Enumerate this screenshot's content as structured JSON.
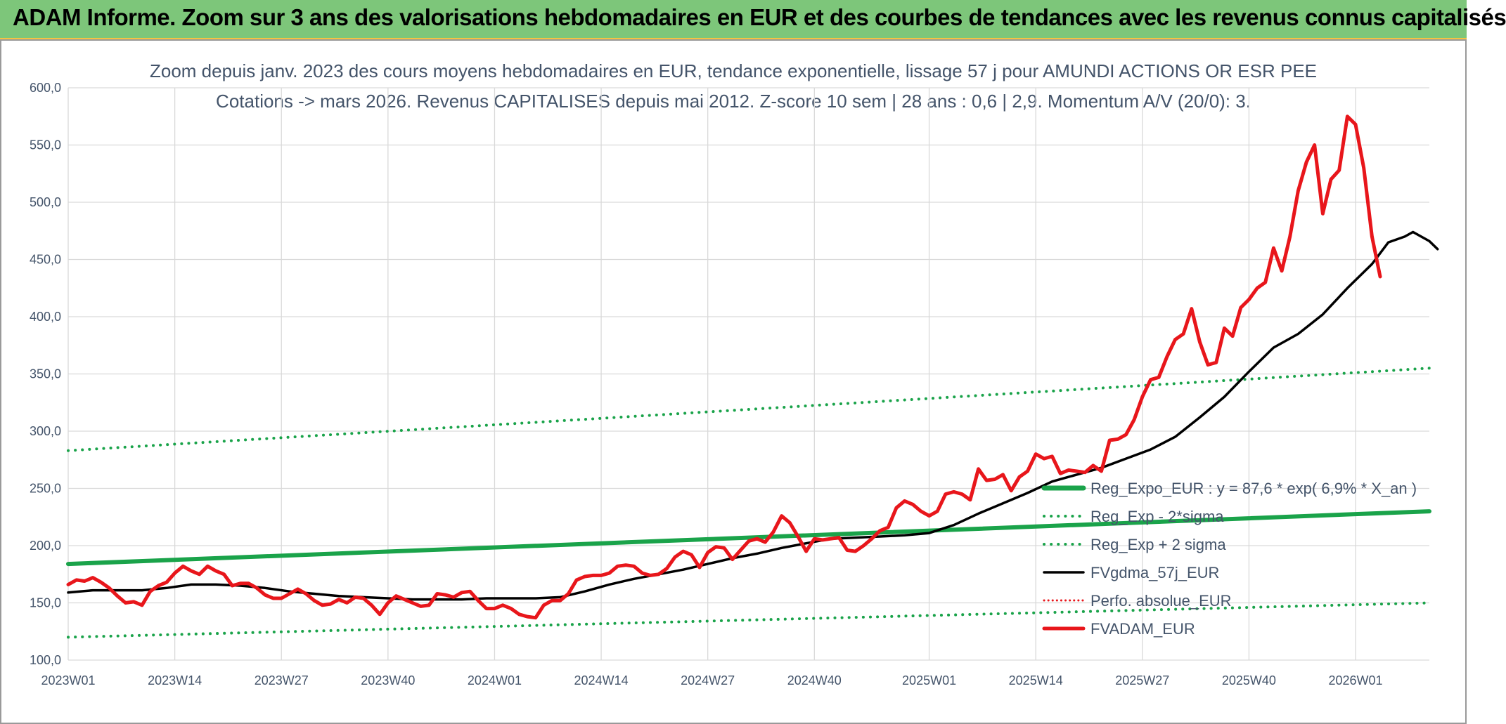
{
  "banner": {
    "title": "ADAM Informe. Zoom sur 3 ans des valorisations hebdomadaires en EUR et des courbes de tendances avec les revenus connus capitalisés"
  },
  "colors": {
    "banner_bg": "#7dc67a",
    "banner_accent": "#f5c242",
    "fvadam": "#e8161b",
    "fvgdma": "#000000",
    "reg_expo": "#1aa34a",
    "perfo": "#e8161b",
    "grid": "#d9d9d9",
    "text": "#44546a"
  },
  "chart_data": {
    "type": "line",
    "title": "Zoom depuis janv. 2023 des cours moyens hebdomadaires en EUR, tendance exponentielle, lissage 57 j pour AMUNDI ACTIONS OR ESR PEE",
    "subtitle": "Cotations -> mars 2026. Revenus CAPITALISES depuis mai 2012. Z-score 10 sem | 28 ans : 0,6 | 2,9. Momentum A/V (20/0): 3.",
    "xlabel": "",
    "ylabel": "",
    "ylim": [
      100,
      600
    ],
    "yticks": [
      "100,0",
      "150,0",
      "200,0",
      "250,0",
      "300,0",
      "350,0",
      "400,0",
      "450,0",
      "500,0",
      "550,0",
      "600,0"
    ],
    "xlim": [
      0,
      166
    ],
    "xticks": [
      {
        "x": 0,
        "label": "2023W01"
      },
      {
        "x": 13,
        "label": "2023W14"
      },
      {
        "x": 26,
        "label": "2023W27"
      },
      {
        "x": 39,
        "label": "2023W40"
      },
      {
        "x": 52,
        "label": "2024W01"
      },
      {
        "x": 65,
        "label": "2024W14"
      },
      {
        "x": 78,
        "label": "2024W27"
      },
      {
        "x": 91,
        "label": "2024W40"
      },
      {
        "x": 105,
        "label": "2025W01"
      },
      {
        "x": 118,
        "label": "2025W14"
      },
      {
        "x": 131,
        "label": "2025W27"
      },
      {
        "x": 144,
        "label": "2025W40"
      },
      {
        "x": 157,
        "label": "2026W01"
      }
    ],
    "grid": true,
    "legend_position": "bottom-right",
    "series": [
      {
        "name": "Reg_Expo_EUR : y = 87,6 * exp( 6,9% *  X_an )",
        "style": "thick",
        "color": "#1aa34a",
        "points": [
          [
            0,
            184
          ],
          [
            166,
            230
          ]
        ]
      },
      {
        "name": "Reg_Exp - 2*sigma",
        "style": "dotted",
        "color": "#1aa34a",
        "points": [
          [
            0,
            120
          ],
          [
            166,
            150
          ]
        ]
      },
      {
        "name": "Reg_Exp + 2 sigma",
        "style": "dotted",
        "color": "#1aa34a",
        "points": [
          [
            0,
            283
          ],
          [
            166,
            355
          ]
        ]
      },
      {
        "name": "FVgdma_57j_EUR",
        "style": "solid",
        "color": "#000000",
        "points": [
          [
            0,
            159
          ],
          [
            3,
            161
          ],
          [
            6,
            161
          ],
          [
            9,
            161
          ],
          [
            12,
            163
          ],
          [
            15,
            166
          ],
          [
            18,
            166
          ],
          [
            21,
            165
          ],
          [
            24,
            163
          ],
          [
            27,
            160
          ],
          [
            30,
            158
          ],
          [
            33,
            156
          ],
          [
            36,
            155
          ],
          [
            39,
            154
          ],
          [
            42,
            153
          ],
          [
            45,
            153
          ],
          [
            48,
            153
          ],
          [
            51,
            154
          ],
          [
            54,
            154
          ],
          [
            57,
            154
          ],
          [
            60,
            155
          ],
          [
            63,
            160
          ],
          [
            66,
            166
          ],
          [
            69,
            171
          ],
          [
            72,
            175
          ],
          [
            75,
            179
          ],
          [
            78,
            184
          ],
          [
            81,
            189
          ],
          [
            84,
            193
          ],
          [
            87,
            198
          ],
          [
            90,
            202
          ],
          [
            93,
            206
          ],
          [
            96,
            207
          ],
          [
            99,
            208
          ],
          [
            102,
            209
          ],
          [
            105,
            211
          ],
          [
            108,
            218
          ],
          [
            111,
            228
          ],
          [
            114,
            237
          ],
          [
            117,
            246
          ],
          [
            120,
            256
          ],
          [
            123,
            262
          ],
          [
            126,
            268
          ],
          [
            129,
            276
          ],
          [
            132,
            284
          ],
          [
            135,
            295
          ],
          [
            138,
            312
          ],
          [
            141,
            330
          ],
          [
            144,
            352
          ],
          [
            147,
            373
          ],
          [
            150,
            385
          ],
          [
            153,
            402
          ],
          [
            156,
            425
          ],
          [
            159,
            446
          ],
          [
            161,
            465
          ],
          [
            163,
            470
          ],
          [
            164,
            474
          ],
          [
            166,
            466
          ],
          [
            167,
            459
          ]
        ]
      },
      {
        "name": "Perfo. absolue_EUR",
        "style": "dotted-red",
        "color": "#e8161b",
        "points": []
      },
      {
        "name": "FVADAM_EUR",
        "style": "thick",
        "color": "#e8161b",
        "points": [
          [
            0,
            166
          ],
          [
            1,
            170
          ],
          [
            2,
            169
          ],
          [
            3,
            172
          ],
          [
            4,
            168
          ],
          [
            5,
            163
          ],
          [
            6,
            156
          ],
          [
            7,
            150
          ],
          [
            8,
            151
          ],
          [
            9,
            148
          ],
          [
            10,
            160
          ],
          [
            11,
            165
          ],
          [
            12,
            168
          ],
          [
            13,
            176
          ],
          [
            14,
            182
          ],
          [
            15,
            178
          ],
          [
            16,
            175
          ],
          [
            17,
            182
          ],
          [
            18,
            178
          ],
          [
            19,
            175
          ],
          [
            20,
            165
          ],
          [
            21,
            167
          ],
          [
            22,
            167
          ],
          [
            23,
            163
          ],
          [
            24,
            157
          ],
          [
            25,
            154
          ],
          [
            26,
            154
          ],
          [
            27,
            158
          ],
          [
            28,
            162
          ],
          [
            29,
            158
          ],
          [
            30,
            152
          ],
          [
            31,
            148
          ],
          [
            32,
            149
          ],
          [
            33,
            153
          ],
          [
            34,
            150
          ],
          [
            35,
            155
          ],
          [
            36,
            154
          ],
          [
            37,
            148
          ],
          [
            38,
            140
          ],
          [
            39,
            150
          ],
          [
            40,
            156
          ],
          [
            41,
            153
          ],
          [
            42,
            150
          ],
          [
            43,
            147
          ],
          [
            44,
            148
          ],
          [
            45,
            158
          ],
          [
            46,
            157
          ],
          [
            47,
            155
          ],
          [
            48,
            159
          ],
          [
            49,
            160
          ],
          [
            50,
            152
          ],
          [
            51,
            145
          ],
          [
            52,
            145
          ],
          [
            53,
            148
          ],
          [
            54,
            145
          ],
          [
            55,
            140
          ],
          [
            56,
            138
          ],
          [
            57,
            137
          ],
          [
            58,
            148
          ],
          [
            59,
            152
          ],
          [
            60,
            152
          ],
          [
            61,
            158
          ],
          [
            62,
            170
          ],
          [
            63,
            173
          ],
          [
            64,
            174
          ],
          [
            65,
            174
          ],
          [
            66,
            176
          ],
          [
            67,
            182
          ],
          [
            68,
            183
          ],
          [
            69,
            182
          ],
          [
            70,
            176
          ],
          [
            71,
            174
          ],
          [
            72,
            175
          ],
          [
            73,
            180
          ],
          [
            74,
            190
          ],
          [
            75,
            195
          ],
          [
            76,
            192
          ],
          [
            77,
            181
          ],
          [
            78,
            194
          ],
          [
            79,
            199
          ],
          [
            80,
            198
          ],
          [
            81,
            188
          ],
          [
            82,
            196
          ],
          [
            83,
            204
          ],
          [
            84,
            206
          ],
          [
            85,
            203
          ],
          [
            86,
            212
          ],
          [
            87,
            226
          ],
          [
            88,
            220
          ],
          [
            89,
            208
          ],
          [
            90,
            195
          ],
          [
            91,
            206
          ],
          [
            92,
            205
          ],
          [
            93,
            206
          ],
          [
            94,
            207
          ],
          [
            95,
            196
          ],
          [
            96,
            195
          ],
          [
            97,
            200
          ],
          [
            98,
            206
          ],
          [
            99,
            213
          ],
          [
            100,
            216
          ],
          [
            101,
            233
          ],
          [
            102,
            239
          ],
          [
            103,
            236
          ],
          [
            104,
            230
          ],
          [
            105,
            226
          ],
          [
            106,
            230
          ],
          [
            107,
            245
          ],
          [
            108,
            247
          ],
          [
            109,
            245
          ],
          [
            110,
            240
          ],
          [
            111,
            267
          ],
          [
            112,
            257
          ],
          [
            113,
            258
          ],
          [
            114,
            262
          ],
          [
            115,
            248
          ],
          [
            116,
            260
          ],
          [
            117,
            265
          ],
          [
            118,
            280
          ],
          [
            119,
            276
          ],
          [
            120,
            278
          ],
          [
            121,
            263
          ],
          [
            122,
            266
          ],
          [
            123,
            265
          ],
          [
            124,
            264
          ],
          [
            125,
            270
          ],
          [
            126,
            265
          ],
          [
            127,
            292
          ],
          [
            128,
            293
          ],
          [
            129,
            297
          ],
          [
            130,
            310
          ],
          [
            131,
            330
          ],
          [
            132,
            345
          ],
          [
            133,
            347
          ],
          [
            134,
            365
          ],
          [
            135,
            380
          ],
          [
            136,
            385
          ],
          [
            137,
            407
          ],
          [
            138,
            378
          ],
          [
            139,
            358
          ],
          [
            140,
            360
          ],
          [
            141,
            390
          ],
          [
            142,
            383
          ],
          [
            143,
            408
          ],
          [
            144,
            415
          ],
          [
            145,
            425
          ],
          [
            146,
            430
          ],
          [
            147,
            460
          ],
          [
            148,
            440
          ],
          [
            149,
            470
          ],
          [
            150,
            510
          ],
          [
            151,
            535
          ],
          [
            152,
            550
          ],
          [
            153,
            490
          ],
          [
            154,
            520
          ],
          [
            155,
            528
          ],
          [
            156,
            575
          ],
          [
            157,
            568
          ],
          [
            158,
            530
          ],
          [
            159,
            470
          ],
          [
            160,
            435
          ]
        ]
      }
    ]
  }
}
